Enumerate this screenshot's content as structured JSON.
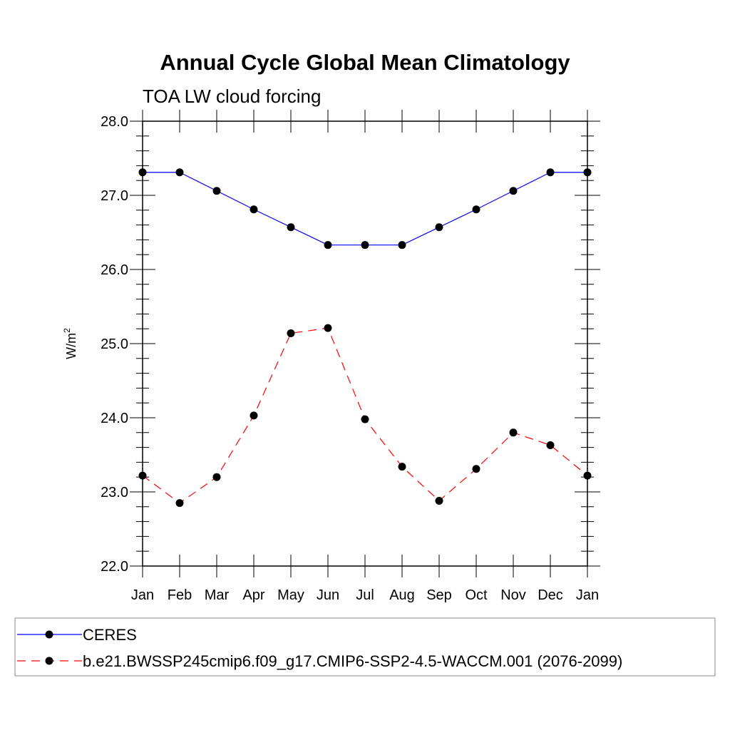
{
  "chart_data": {
    "type": "line",
    "title": "Annual Cycle Global Mean Climatology",
    "subtitle": "TOA LW cloud forcing",
    "xlabel": "",
    "ylabel_base": "W/m",
    "ylabel_sup": "2",
    "categories": [
      "Jan",
      "Feb",
      "Mar",
      "Apr",
      "May",
      "Jun",
      "Jul",
      "Aug",
      "Sep",
      "Oct",
      "Nov",
      "Dec",
      "Jan"
    ],
    "ylim": [
      22.0,
      28.0
    ],
    "yticks": [
      "22.0",
      "23.0",
      "24.0",
      "25.0",
      "26.0",
      "27.0",
      "28.0"
    ],
    "series": [
      {
        "name": "CERES",
        "color": "#0000ff",
        "dash": "solid",
        "values": [
          27.31,
          27.31,
          27.06,
          26.81,
          26.57,
          26.33,
          26.33,
          26.33,
          26.57,
          26.81,
          27.06,
          27.31,
          27.31
        ]
      },
      {
        "name": "b.e21.BWSSP245cmip6.f09_g17.CMIP6-SSP2-4.5-WACCM.001 (2076-2099)",
        "color": "#ff0000",
        "dash": "dashed",
        "values": [
          23.22,
          22.85,
          23.2,
          24.03,
          25.14,
          25.21,
          23.98,
          23.34,
          22.88,
          23.31,
          23.8,
          23.63,
          23.22
        ]
      }
    ],
    "legend_position": "bottom"
  }
}
